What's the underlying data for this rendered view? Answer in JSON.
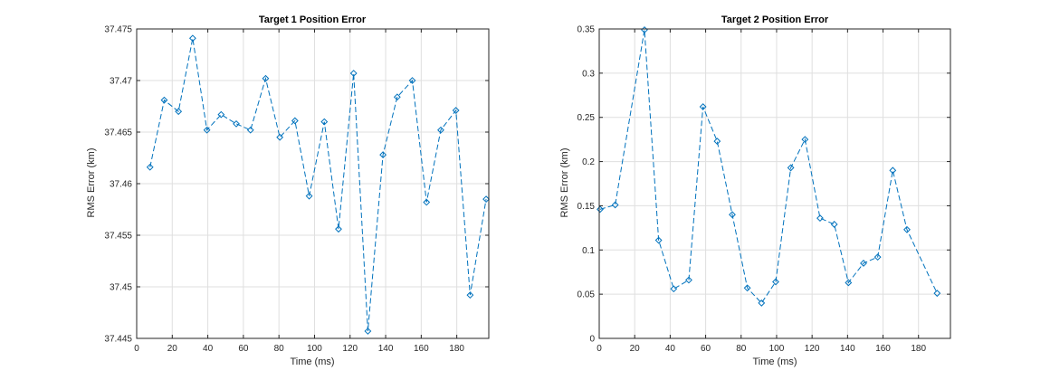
{
  "chart_data": [
    {
      "type": "line",
      "title": "Target 1 Position Error",
      "xlabel": "Time (ms)",
      "ylabel": "RMS Error (km)",
      "xlim": [
        0,
        198
      ],
      "ylim": [
        37.445,
        37.475
      ],
      "xticks": [
        0,
        20,
        40,
        60,
        80,
        100,
        120,
        140,
        160,
        180
      ],
      "yticks": [
        37.445,
        37.45,
        37.455,
        37.46,
        37.465,
        37.47,
        37.475
      ],
      "ytick_labels": [
        "37.445",
        "37.45",
        "37.455",
        "37.46",
        "37.465",
        "37.47",
        "37.475"
      ],
      "grid": true,
      "line_color": "#0072BD",
      "line_style": "dashed",
      "marker": "diamond",
      "x": [
        7.5,
        15.5,
        23.5,
        31.5,
        39.5,
        47.5,
        56,
        64,
        72.5,
        80.5,
        89,
        97,
        105.5,
        113.5,
        122,
        130,
        138.5,
        146.5,
        155,
        163,
        171,
        179.5,
        187.5,
        196.5
      ],
      "y": [
        37.4616,
        37.4681,
        37.467,
        37.4741,
        37.4652,
        37.4667,
        37.4658,
        37.4652,
        37.4702,
        37.4645,
        37.4661,
        37.4588,
        37.466,
        37.4556,
        37.4707,
        37.4457,
        37.4628,
        37.4684,
        37.47,
        37.4582,
        37.4652,
        37.4671,
        37.4492,
        37.4585
      ]
    },
    {
      "type": "line",
      "title": "Target 2 Position Error",
      "xlabel": "Time (ms)",
      "ylabel": "RMS Error (km)",
      "xlim": [
        0,
        198
      ],
      "ylim": [
        0,
        0.35
      ],
      "xticks": [
        0,
        20,
        40,
        60,
        80,
        100,
        120,
        140,
        160,
        180
      ],
      "yticks": [
        0,
        0.05,
        0.1,
        0.15,
        0.2,
        0.25,
        0.3,
        0.35
      ],
      "ytick_labels": [
        "0",
        "0.05",
        "0.1",
        "0.15",
        "0.2",
        "0.25",
        "0.3",
        "0.35"
      ],
      "grid": true,
      "line_color": "#0072BD",
      "line_style": "dashed",
      "marker": "diamond",
      "x": [
        0.5,
        9,
        25.5,
        33.5,
        42,
        50.5,
        58.5,
        66.5,
        75,
        83.5,
        91.5,
        99.5,
        108,
        116,
        124.5,
        132.5,
        140.5,
        149,
        157,
        165.5,
        173.5,
        190.5
      ],
      "y": [
        0.146,
        0.151,
        0.349,
        0.111,
        0.056,
        0.066,
        0.262,
        0.223,
        0.14,
        0.057,
        0.04,
        0.064,
        0.193,
        0.225,
        0.136,
        0.129,
        0.063,
        0.085,
        0.092,
        0.19,
        0.123,
        0.051
      ]
    }
  ]
}
